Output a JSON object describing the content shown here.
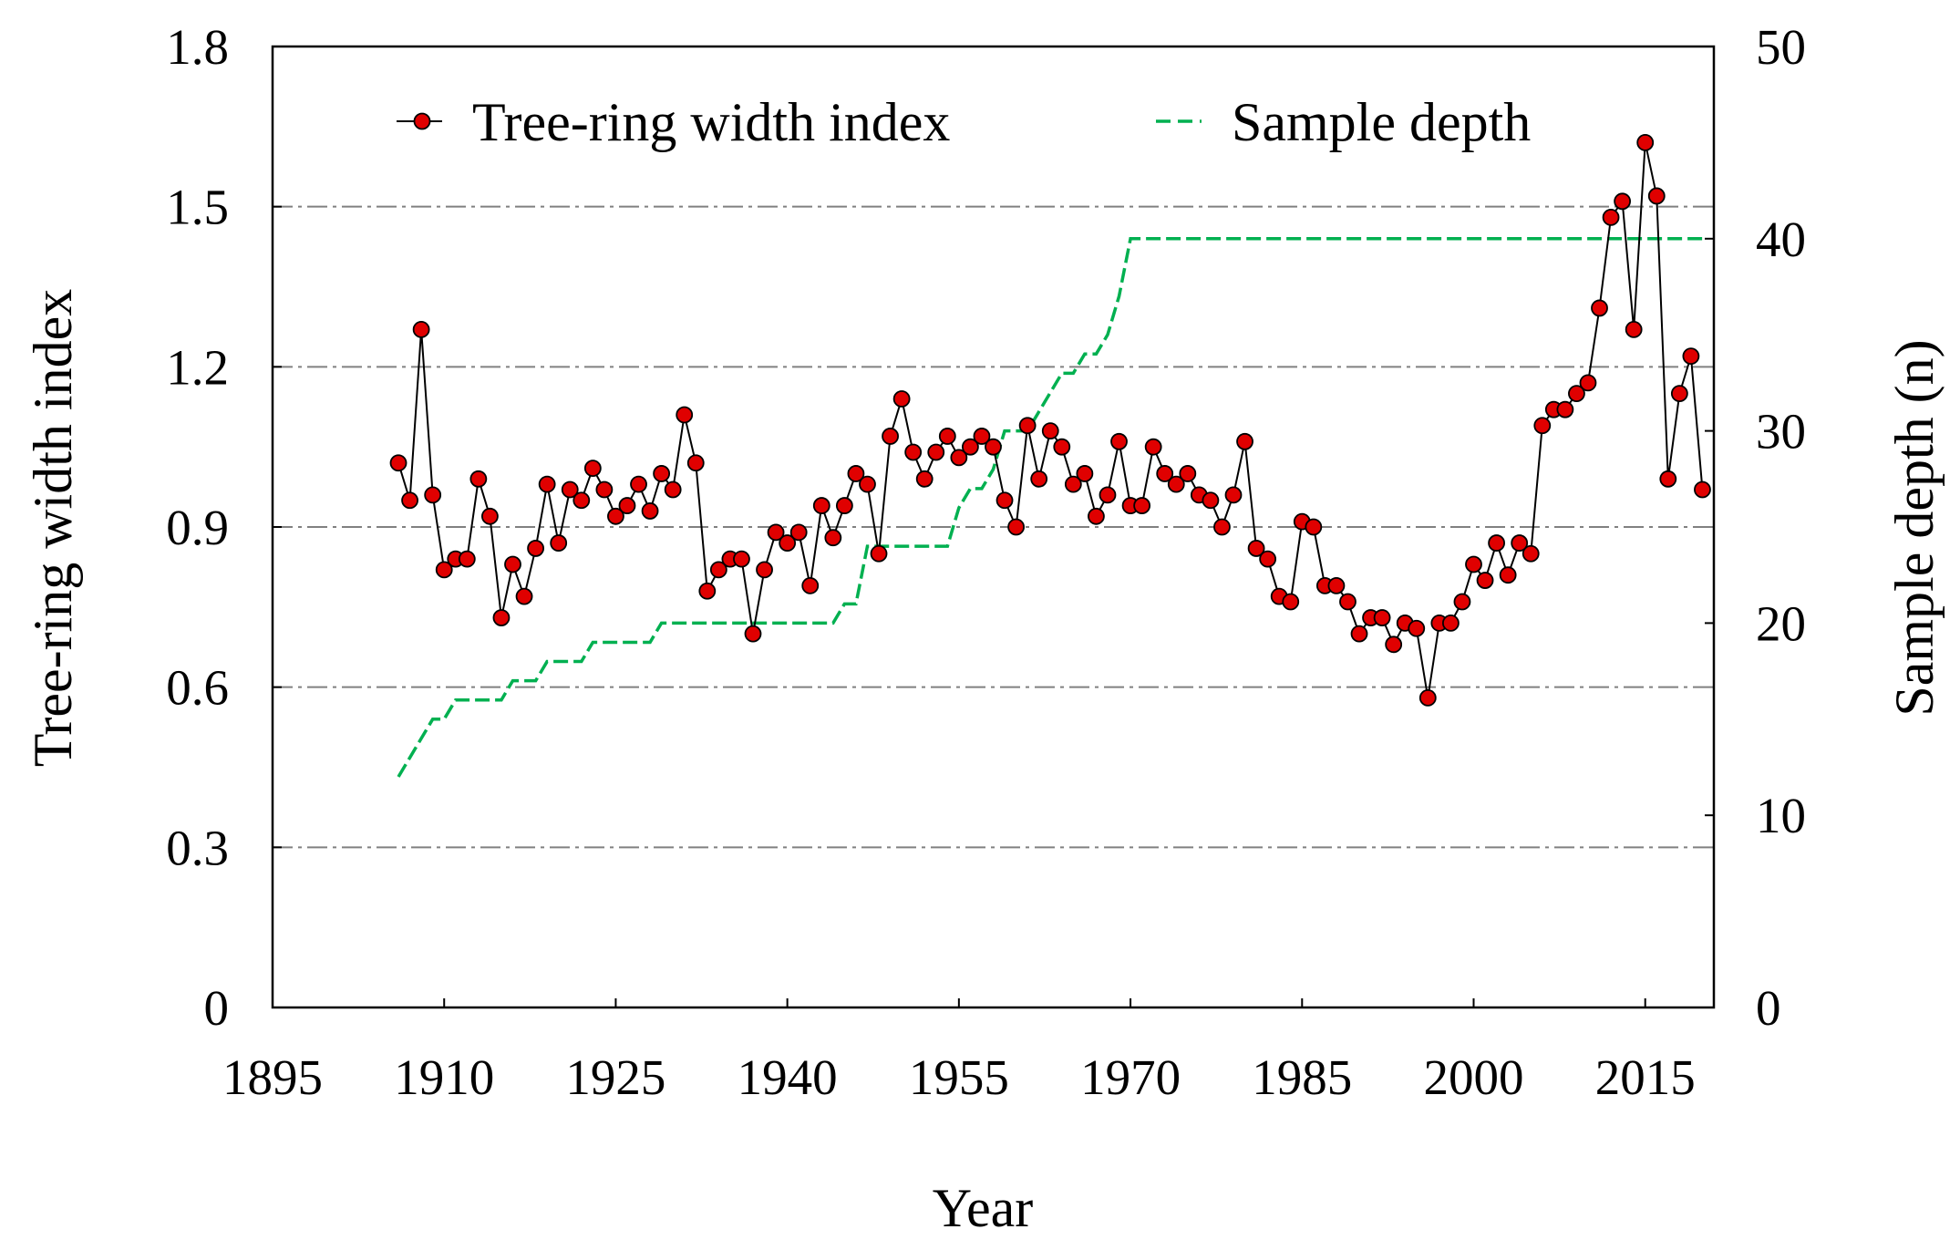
{
  "chart_data": {
    "type": "line",
    "xlabel": "Year",
    "ylabel": "Tree-ring width index",
    "y2label": "Sample depth (n)",
    "x": [
      1906,
      1907,
      1908,
      1909,
      1910,
      1911,
      1912,
      1913,
      1914,
      1915,
      1916,
      1917,
      1918,
      1919,
      1920,
      1921,
      1922,
      1923,
      1924,
      1925,
      1926,
      1927,
      1928,
      1929,
      1930,
      1931,
      1932,
      1933,
      1934,
      1935,
      1936,
      1937,
      1938,
      1939,
      1940,
      1941,
      1942,
      1943,
      1944,
      1945,
      1946,
      1947,
      1948,
      1949,
      1950,
      1951,
      1952,
      1953,
      1954,
      1955,
      1956,
      1957,
      1958,
      1959,
      1960,
      1961,
      1962,
      1963,
      1964,
      1965,
      1966,
      1967,
      1968,
      1969,
      1970,
      1971,
      1972,
      1973,
      1974,
      1975,
      1976,
      1977,
      1978,
      1979,
      1980,
      1981,
      1982,
      1983,
      1984,
      1985,
      1986,
      1987,
      1988,
      1989,
      1990,
      1991,
      1992,
      1993,
      1994,
      1995,
      1996,
      1997,
      1998,
      1999,
      2000,
      2001,
      2002,
      2003,
      2004,
      2005,
      2006,
      2007,
      2008,
      2009,
      2010,
      2011,
      2012,
      2013,
      2014,
      2015,
      2016,
      2017,
      2018,
      2019,
      2020
    ],
    "series": [
      {
        "name": "Tree-ring width index",
        "color": "#e00000",
        "line_color": "#000000",
        "values": [
          1.02,
          0.95,
          1.27,
          0.96,
          0.82,
          0.84,
          0.84,
          0.99,
          0.92,
          0.73,
          0.83,
          0.77,
          0.86,
          0.98,
          0.87,
          0.97,
          0.95,
          1.01,
          0.97,
          0.92,
          0.94,
          0.98,
          0.93,
          1.0,
          0.97,
          1.11,
          1.02,
          0.78,
          0.82,
          0.84,
          0.84,
          0.7,
          0.82,
          0.89,
          0.87,
          0.89,
          0.79,
          0.94,
          0.88,
          0.94,
          1.0,
          0.98,
          0.85,
          1.07,
          1.14,
          1.04,
          0.99,
          1.04,
          1.07,
          1.03,
          1.05,
          1.07,
          1.05,
          0.95,
          0.9,
          1.09,
          0.99,
          1.08,
          1.05,
          0.98,
          1.0,
          0.92,
          0.96,
          1.06,
          0.94,
          0.94,
          1.05,
          1.0,
          0.98,
          1.0,
          0.96,
          0.95,
          0.9,
          0.96,
          1.06,
          0.86,
          0.84,
          0.77,
          0.76,
          0.91,
          0.9,
          0.79,
          0.79,
          0.76,
          0.7,
          0.73,
          0.73,
          0.68,
          0.72,
          0.71,
          0.58,
          0.72,
          0.72,
          0.76,
          0.83,
          0.8,
          0.87,
          0.81,
          0.87,
          0.85,
          1.09,
          1.12,
          1.12,
          1.15,
          1.17,
          1.31,
          1.48,
          1.51,
          1.27,
          1.62,
          1.52,
          0.99,
          1.15,
          1.22,
          0.97
        ]
      },
      {
        "name": "Sample depth",
        "color": "#00b050",
        "axis": "y2",
        "values": [
          12,
          13,
          14,
          15,
          15,
          16,
          16,
          16,
          16,
          16,
          17,
          17,
          17,
          18,
          18,
          18,
          18,
          19,
          19,
          19,
          19,
          19,
          19,
          20,
          20,
          20,
          20,
          20,
          20,
          20,
          20,
          20,
          20,
          20,
          20,
          20,
          20,
          20,
          20,
          21,
          21,
          24,
          24,
          24,
          24,
          24,
          24,
          24,
          24,
          26,
          27,
          27,
          28,
          30,
          30,
          30,
          31,
          32,
          33,
          33,
          34,
          34,
          35,
          37,
          40,
          40,
          40,
          40,
          40,
          40,
          40,
          40,
          40,
          40,
          40,
          40,
          40,
          40,
          40,
          40,
          40,
          40,
          40,
          40,
          40,
          40,
          40,
          40,
          40,
          40,
          40,
          40,
          40,
          40,
          40,
          40,
          40,
          40,
          40,
          40,
          40,
          40,
          40,
          40,
          40,
          40,
          40,
          40,
          40,
          40,
          40,
          40,
          40,
          40,
          40
        ]
      }
    ],
    "xlim": [
      1895,
      2021
    ],
    "xticks": [
      1895,
      1910,
      1925,
      1940,
      1955,
      1970,
      1985,
      2000,
      2015
    ],
    "ylim": [
      0,
      1.8
    ],
    "yticks": [
      0,
      0.3,
      0.6,
      0.9,
      1.2,
      1.5,
      1.8
    ],
    "y2lim": [
      0,
      50
    ],
    "y2ticks": [
      0,
      10,
      20,
      30,
      40,
      50
    ],
    "grid": true,
    "legend": "top"
  }
}
